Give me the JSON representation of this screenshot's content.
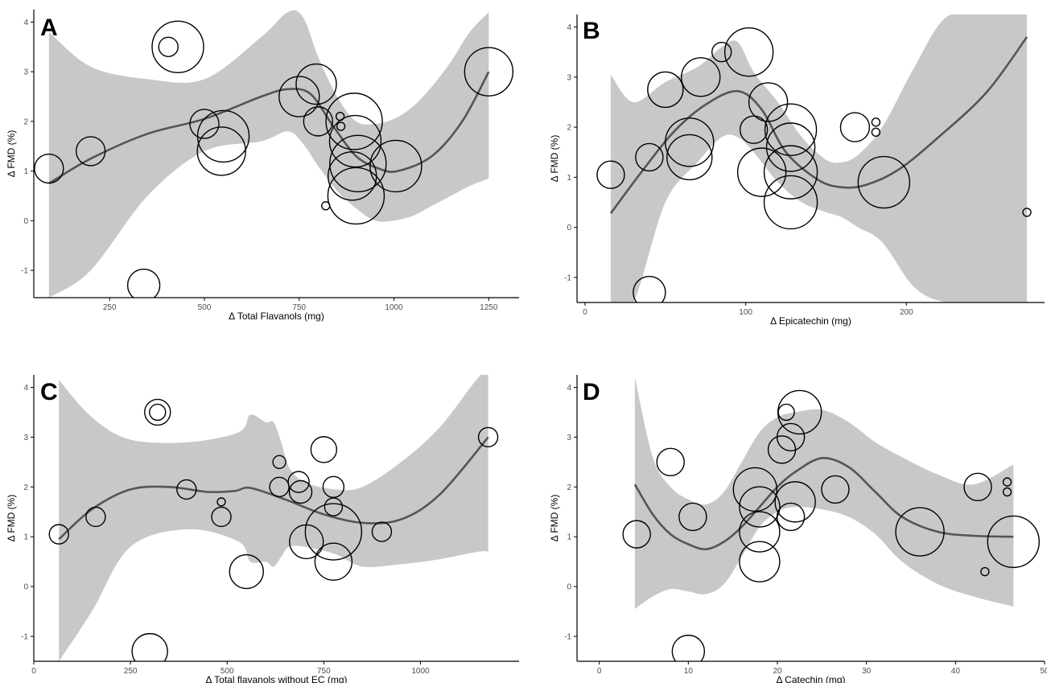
{
  "colors": {
    "ci_band": "#c8c8c8",
    "trend_line": "#555555",
    "circle_stroke": "#000000",
    "axis": "#000000"
  },
  "chart_data": [
    {
      "panel": "A",
      "type": "scatter",
      "title": "",
      "xlabel": "Δ Total Flavanols (mg)",
      "ylabel": "Δ FMD (%)",
      "xlim": [
        50,
        1330
      ],
      "ylim": [
        -1.55,
        4.25
      ],
      "xticks": [
        250,
        500,
        750,
        1000,
        1250
      ],
      "yticks": [
        -1,
        0,
        1,
        2,
        3,
        4
      ],
      "band_x": [
        90,
        200,
        350,
        500,
        650,
        720,
        760,
        800,
        850,
        900,
        950,
        1000,
        1050,
        1100,
        1150,
        1200,
        1250
      ],
      "band_upper": [
        3.8,
        3.1,
        2.85,
        2.85,
        3.7,
        4.2,
        4.1,
        3.3,
        2.5,
        2.0,
        1.95,
        2.05,
        2.3,
        2.7,
        3.2,
        3.8,
        4.2
      ],
      "band_lower": [
        -1.55,
        -1.0,
        0.5,
        1.4,
        1.6,
        1.8,
        1.55,
        1.1,
        0.6,
        0.25,
        0.0,
        0.0,
        0.1,
        0.3,
        0.5,
        0.7,
        0.85
      ],
      "trend_x": [
        90,
        200,
        350,
        500,
        650,
        720,
        780,
        840,
        900,
        960,
        1010,
        1100,
        1180,
        1250
      ],
      "trend_y": [
        0.75,
        1.25,
        1.75,
        2.05,
        2.5,
        2.65,
        2.55,
        1.9,
        1.3,
        1.05,
        1.0,
        1.3,
        2.0,
        3.0
      ],
      "points": [
        {
          "x": 90,
          "y": 1.05,
          "r": 18
        },
        {
          "x": 200,
          "y": 1.4,
          "r": 18
        },
        {
          "x": 340,
          "y": -1.3,
          "r": 20
        },
        {
          "x": 405,
          "y": 3.5,
          "r": 12
        },
        {
          "x": 430,
          "y": 3.5,
          "r": 32
        },
        {
          "x": 500,
          "y": 1.95,
          "r": 18
        },
        {
          "x": 545,
          "y": 1.4,
          "r": 30
        },
        {
          "x": 550,
          "y": 1.7,
          "r": 32
        },
        {
          "x": 750,
          "y": 2.5,
          "r": 25
        },
        {
          "x": 795,
          "y": 2.75,
          "r": 25
        },
        {
          "x": 800,
          "y": 2.0,
          "r": 18
        },
        {
          "x": 820,
          "y": 0.3,
          "r": 5
        },
        {
          "x": 858,
          "y": 2.1,
          "r": 5
        },
        {
          "x": 860,
          "y": 1.9,
          "r": 5
        },
        {
          "x": 895,
          "y": 2.0,
          "r": 35
        },
        {
          "x": 898,
          "y": 1.6,
          "r": 32
        },
        {
          "x": 890,
          "y": 0.9,
          "r": 30
        },
        {
          "x": 905,
          "y": 1.15,
          "r": 35
        },
        {
          "x": 900,
          "y": 0.5,
          "r": 35
        },
        {
          "x": 1005,
          "y": 1.1,
          "r": 32
        },
        {
          "x": 1250,
          "y": 3.0,
          "r": 30
        }
      ]
    },
    {
      "panel": "B",
      "type": "scatter",
      "title": "",
      "xlabel": "Δ Epicatechin (mg)",
      "ylabel": "Δ FMD (%)",
      "xlim": [
        -5,
        286
      ],
      "ylim": [
        -1.5,
        4.25
      ],
      "xticks": [
        0,
        100,
        200
      ],
      "yticks": [
        -1,
        0,
        1,
        2,
        3,
        4
      ],
      "band_x": [
        16,
        30,
        50,
        70,
        85,
        95,
        105,
        120,
        135,
        150,
        160,
        170,
        185,
        205,
        225,
        250,
        275
      ],
      "band_upper": [
        3.05,
        2.5,
        2.9,
        3.2,
        3.6,
        3.7,
        3.1,
        2.5,
        1.8,
        1.35,
        1.3,
        1.45,
        2.0,
        3.2,
        4.2,
        4.25,
        4.25
      ],
      "band_lower": [
        -1.5,
        -1.5,
        0.5,
        1.3,
        1.8,
        1.8,
        1.5,
        0.9,
        0.5,
        0.3,
        0.2,
        0.0,
        -0.3,
        -1.2,
        -1.5,
        -1.5,
        -1.5
      ],
      "trend_x": [
        16,
        35,
        55,
        75,
        95,
        110,
        125,
        145,
        160,
        175,
        195,
        220,
        250,
        275
      ],
      "trend_y": [
        0.28,
        1.1,
        1.9,
        2.45,
        2.72,
        2.35,
        1.5,
        0.95,
        0.8,
        0.85,
        1.15,
        1.8,
        2.7,
        3.8
      ],
      "points": [
        {
          "x": 16,
          "y": 1.05,
          "r": 17
        },
        {
          "x": 40,
          "y": 1.4,
          "r": 17
        },
        {
          "x": 40,
          "y": -1.3,
          "r": 20
        },
        {
          "x": 50,
          "y": 2.75,
          "r": 22
        },
        {
          "x": 65,
          "y": 1.4,
          "r": 28
        },
        {
          "x": 65,
          "y": 1.7,
          "r": 30
        },
        {
          "x": 72,
          "y": 3.0,
          "r": 24
        },
        {
          "x": 85,
          "y": 3.5,
          "r": 12
        },
        {
          "x": 102,
          "y": 3.5,
          "r": 30
        },
        {
          "x": 105,
          "y": 1.95,
          "r": 17
        },
        {
          "x": 114,
          "y": 2.5,
          "r": 24
        },
        {
          "x": 110,
          "y": 1.1,
          "r": 30
        },
        {
          "x": 128,
          "y": 1.95,
          "r": 32
        },
        {
          "x": 128,
          "y": 1.6,
          "r": 30
        },
        {
          "x": 128,
          "y": 1.1,
          "r": 33
        },
        {
          "x": 128,
          "y": 0.5,
          "r": 33
        },
        {
          "x": 168,
          "y": 2.0,
          "r": 18
        },
        {
          "x": 181,
          "y": 2.1,
          "r": 5
        },
        {
          "x": 181,
          "y": 1.9,
          "r": 5
        },
        {
          "x": 186,
          "y": 0.9,
          "r": 32
        },
        {
          "x": 275,
          "y": 0.3,
          "r": 5
        }
      ]
    },
    {
      "panel": "C",
      "type": "scatter",
      "title": "",
      "xlabel": "Δ Total flavanols without EC (mg)",
      "ylabel": "Δ FMD (%)",
      "xlim": [
        0,
        1255
      ],
      "ylim": [
        -1.5,
        4.25
      ],
      "xticks": [
        0,
        250,
        500,
        750,
        1000
      ],
      "yticks": [
        -1,
        0,
        1,
        2,
        3,
        4
      ],
      "band_x": [
        65,
        150,
        250,
        400,
        530,
        560,
        600,
        620,
        640,
        660,
        700,
        780,
        850,
        950,
        1050,
        1150,
        1175
      ],
      "band_upper": [
        4.15,
        3.4,
        2.95,
        2.9,
        3.1,
        3.45,
        3.3,
        3.3,
        2.9,
        2.4,
        2.1,
        1.95,
        2.0,
        2.5,
        3.2,
        4.2,
        4.25
      ],
      "band_lower": [
        -1.5,
        -0.5,
        0.8,
        1.15,
        0.9,
        0.5,
        0.5,
        0.4,
        0.6,
        0.8,
        0.8,
        0.65,
        0.4,
        0.45,
        0.55,
        0.7,
        0.7
      ],
      "trend_x": [
        65,
        150,
        250,
        350,
        450,
        520,
        560,
        650,
        750,
        850,
        950,
        1050,
        1175
      ],
      "trend_y": [
        0.95,
        1.55,
        1.95,
        2.0,
        1.9,
        1.92,
        1.98,
        1.75,
        1.45,
        1.28,
        1.35,
        1.85,
        3.0
      ],
      "points": [
        {
          "x": 65,
          "y": 1.05,
          "r": 12
        },
        {
          "x": 160,
          "y": 1.4,
          "r": 12
        },
        {
          "x": 300,
          "y": -1.3,
          "r": 22
        },
        {
          "x": 320,
          "y": 3.5,
          "r": 10
        },
        {
          "x": 320,
          "y": 3.5,
          "r": 16
        },
        {
          "x": 395,
          "y": 1.95,
          "r": 12
        },
        {
          "x": 485,
          "y": 1.7,
          "r": 5
        },
        {
          "x": 485,
          "y": 1.4,
          "r": 12
        },
        {
          "x": 550,
          "y": 0.3,
          "r": 21
        },
        {
          "x": 635,
          "y": 2.5,
          "r": 8
        },
        {
          "x": 635,
          "y": 2.0,
          "r": 12
        },
        {
          "x": 685,
          "y": 2.1,
          "r": 13
        },
        {
          "x": 690,
          "y": 1.9,
          "r": 14
        },
        {
          "x": 705,
          "y": 0.9,
          "r": 21
        },
        {
          "x": 750,
          "y": 2.75,
          "r": 16
        },
        {
          "x": 775,
          "y": 2.0,
          "r": 13
        },
        {
          "x": 775,
          "y": 1.6,
          "r": 11
        },
        {
          "x": 775,
          "y": 1.1,
          "r": 35
        },
        {
          "x": 775,
          "y": 0.5,
          "r": 23
        },
        {
          "x": 900,
          "y": 1.1,
          "r": 12
        },
        {
          "x": 1175,
          "y": 3.0,
          "r": 12
        }
      ]
    },
    {
      "panel": "D",
      "type": "scatter",
      "title": "",
      "xlabel": "Δ Catechin (mg)",
      "ylabel": "Δ FMD (%)",
      "xlim": [
        -2.5,
        50
      ],
      "ylim": [
        -1.5,
        4.25
      ],
      "xticks": [
        0,
        10,
        20,
        30,
        40,
        50
      ],
      "yticks": [
        -1,
        0,
        1,
        2,
        3,
        4
      ],
      "band_x": [
        4,
        6,
        8,
        10,
        12,
        14,
        16,
        18,
        20,
        22,
        25,
        28,
        31,
        34,
        38,
        42,
        46.5
      ],
      "band_upper": [
        4.2,
        2.6,
        2.0,
        1.75,
        1.65,
        1.9,
        2.5,
        3.1,
        3.4,
        3.5,
        3.55,
        3.3,
        2.9,
        2.6,
        2.25,
        2.05,
        2.45
      ],
      "band_lower": [
        -0.45,
        -0.2,
        -0.05,
        -0.1,
        -0.15,
        0.05,
        0.6,
        1.2,
        1.5,
        1.6,
        1.55,
        1.4,
        1.05,
        0.5,
        0.05,
        -0.2,
        -0.4
      ],
      "trend_x": [
        4,
        6,
        8,
        10,
        12,
        14,
        16,
        18,
        20,
        22,
        25,
        28,
        31,
        34,
        38,
        42,
        46.5
      ],
      "trend_y": [
        2.05,
        1.45,
        1.05,
        0.85,
        0.75,
        0.9,
        1.2,
        1.6,
        2.0,
        2.3,
        2.58,
        2.4,
        1.9,
        1.4,
        1.1,
        1.02,
        1.0
      ],
      "points": [
        {
          "x": 4.2,
          "y": 1.05,
          "r": 17
        },
        {
          "x": 8,
          "y": 2.5,
          "r": 17
        },
        {
          "x": 10.5,
          "y": 1.4,
          "r": 17
        },
        {
          "x": 10,
          "y": -1.3,
          "r": 20
        },
        {
          "x": 17.5,
          "y": 1.95,
          "r": 27
        },
        {
          "x": 18,
          "y": 1.6,
          "r": 25
        },
        {
          "x": 18,
          "y": 1.1,
          "r": 25
        },
        {
          "x": 18,
          "y": 0.5,
          "r": 25
        },
        {
          "x": 20.5,
          "y": 2.75,
          "r": 17
        },
        {
          "x": 21,
          "y": 3.5,
          "r": 10
        },
        {
          "x": 21.5,
          "y": 3.0,
          "r": 17
        },
        {
          "x": 22.5,
          "y": 3.5,
          "r": 27
        },
        {
          "x": 22,
          "y": 1.7,
          "r": 25
        },
        {
          "x": 21.5,
          "y": 1.4,
          "r": 17
        },
        {
          "x": 26.5,
          "y": 1.95,
          "r": 17
        },
        {
          "x": 36,
          "y": 1.1,
          "r": 30
        },
        {
          "x": 42.5,
          "y": 2.0,
          "r": 17
        },
        {
          "x": 43.3,
          "y": 0.3,
          "r": 5
        },
        {
          "x": 45.8,
          "y": 2.1,
          "r": 5
        },
        {
          "x": 45.8,
          "y": 1.9,
          "r": 5
        },
        {
          "x": 46.5,
          "y": 0.9,
          "r": 32
        }
      ]
    }
  ]
}
